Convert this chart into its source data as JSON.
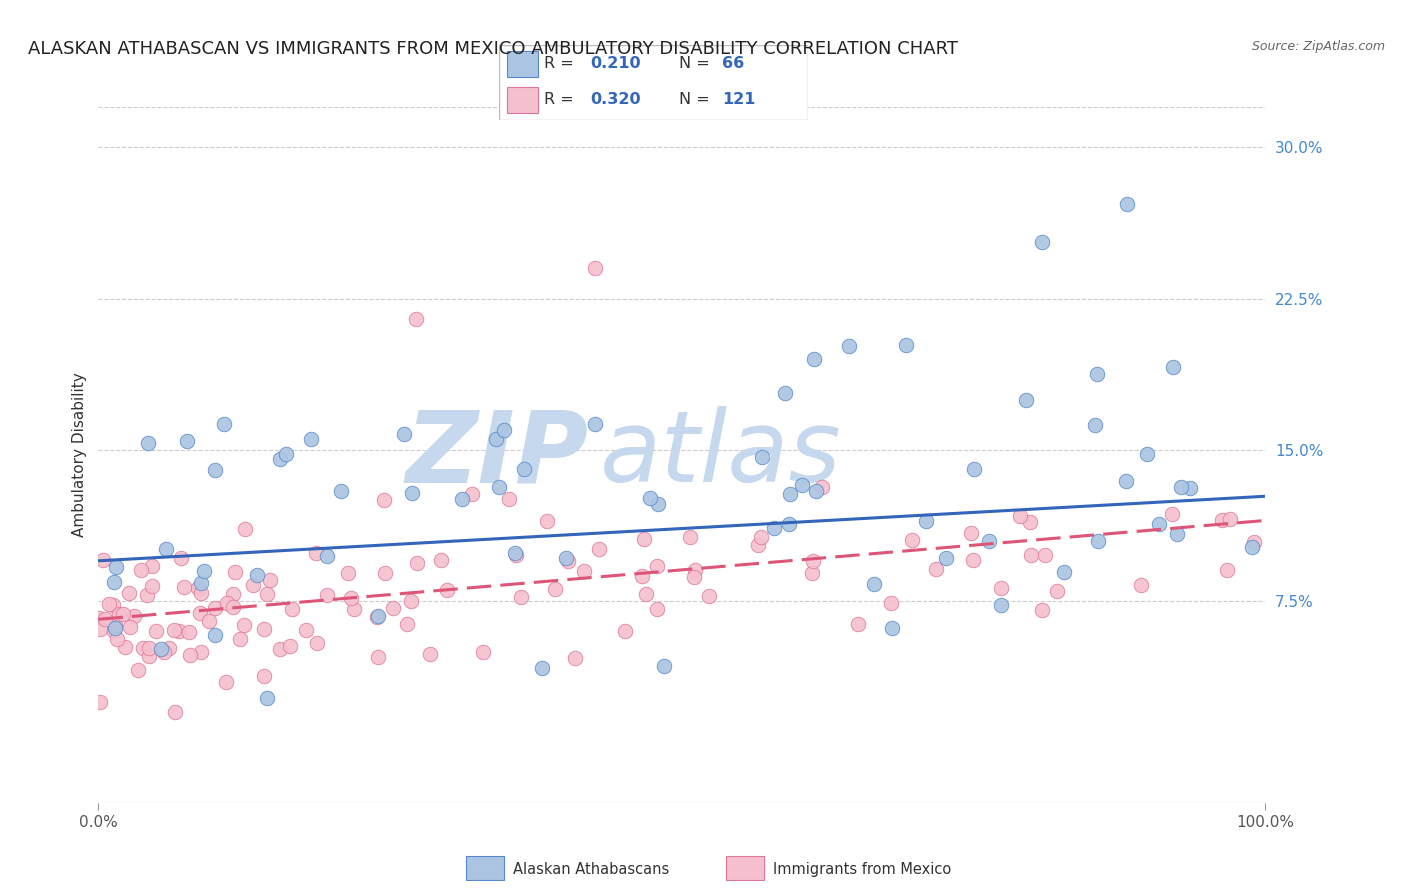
{
  "title": "ALASKAN ATHABASCAN VS IMMIGRANTS FROM MEXICO AMBULATORY DISABILITY CORRELATION CHART",
  "source": "Source: ZipAtlas.com",
  "ylabel": "Ambulatory Disability",
  "x_min": 0.0,
  "x_max": 1.0,
  "y_min": -0.025,
  "y_max": 0.32,
  "x_ticks": [
    0.0,
    1.0
  ],
  "x_tick_labels": [
    "0.0%",
    "100.0%"
  ],
  "y_ticks": [
    0.075,
    0.15,
    0.225,
    0.3
  ],
  "y_tick_labels": [
    "7.5%",
    "15.0%",
    "22.5%",
    "30.0%"
  ],
  "series1_name": "Alaskan Athabascans",
  "series1_R": "0.210",
  "series1_N": "66",
  "series1_color": "#aac4e2",
  "series1_edge_color": "#5588cc",
  "series1_line_color": "#3366bb",
  "series2_name": "Immigrants from Mexico",
  "series2_R": "0.320",
  "series2_N": "121",
  "series2_color": "#f5bfce",
  "series2_edge_color": "#dd7799",
  "series2_line_color": "#dd5577",
  "background_color": "#ffffff",
  "grid_color": "#cccccc",
  "title_color": "#222222",
  "tick_color_y": "#4488cc",
  "tick_color_x": "#555555",
  "title_fontsize": 13,
  "axis_label_fontsize": 11,
  "tick_fontsize": 11,
  "watermark_zip_color": "#c5d8ed",
  "watermark_atlas_color": "#c5d8ed",
  "series1_line_start_y": 0.095,
  "series1_line_end_y": 0.127,
  "series2_line_start_y": 0.066,
  "series2_line_end_y": 0.115
}
